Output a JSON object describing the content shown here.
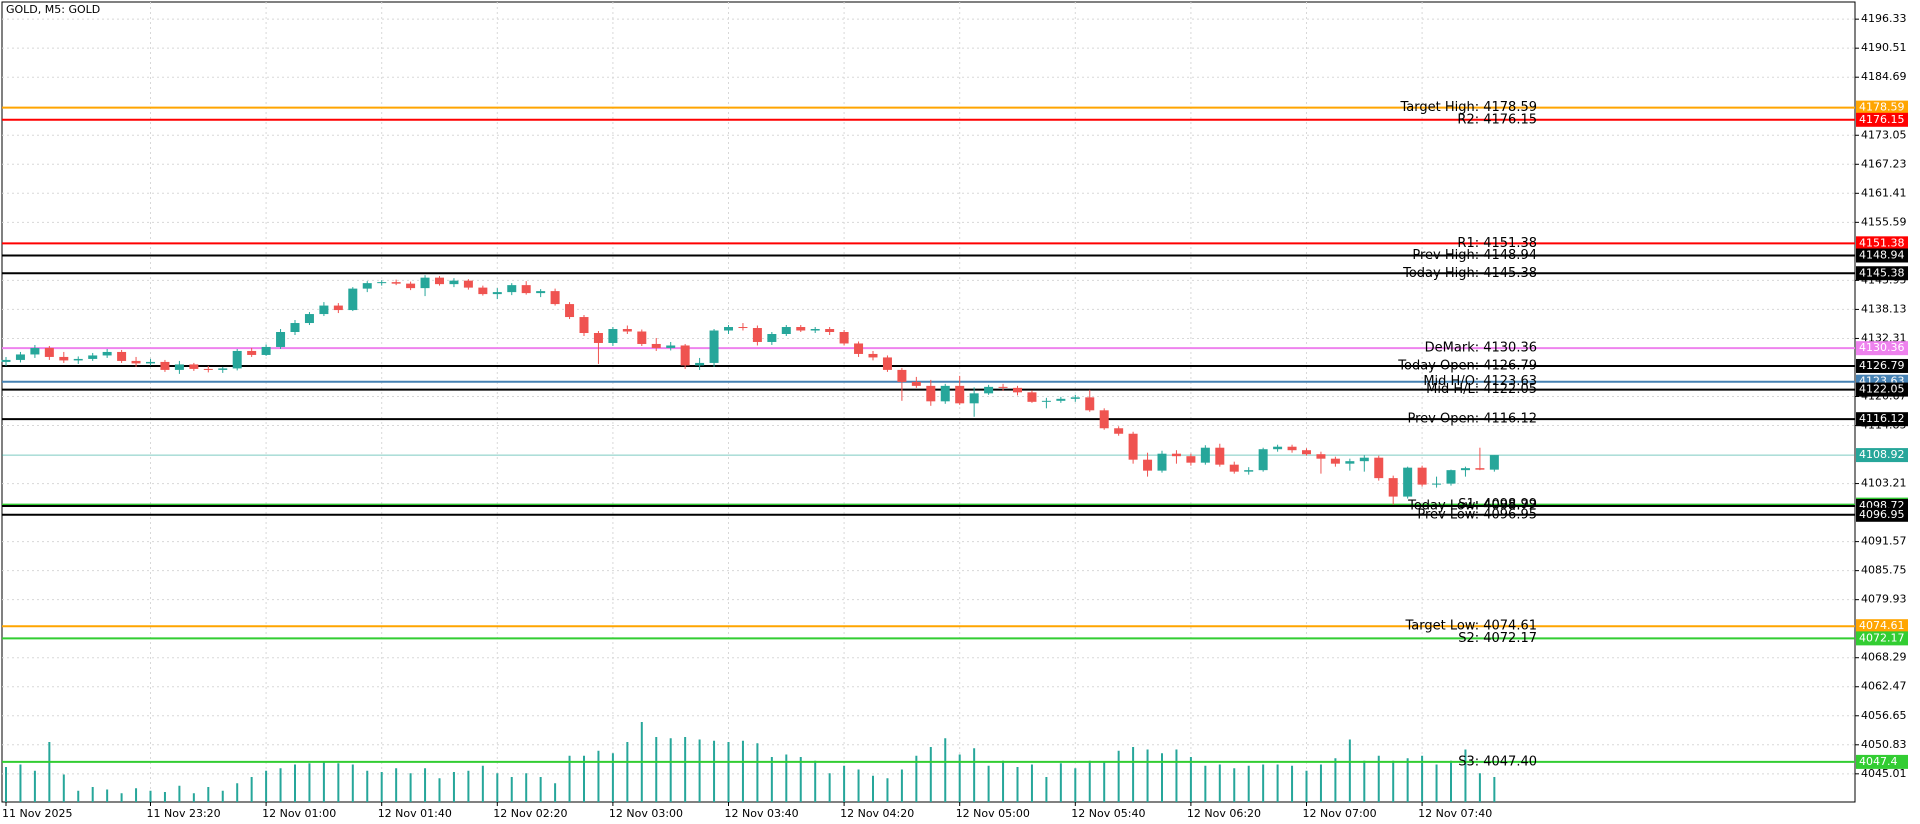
{
  "chart_data": {
    "type": "candlestick",
    "title": "GOLD, M5:  GOLD",
    "bull_color": "#26a69a",
    "bear_color": "#ef5350",
    "volume_color": "#26a69a",
    "grid": true,
    "ylim": [
      4039.36,
      4199.77
    ],
    "yticks": [
      4196.33,
      4190.51,
      4184.69,
      4173.05,
      4167.23,
      4161.41,
      4155.59,
      4143.95,
      4138.13,
      4132.31,
      4120.67,
      4114.85,
      4103.21,
      4091.57,
      4085.75,
      4079.93,
      4068.29,
      4062.47,
      4056.65,
      4050.83,
      4045.01
    ],
    "categories": [
      "11 Nov 2025",
      null,
      null,
      null,
      null,
      null,
      null,
      null,
      null,
      null,
      "11 Nov 23:20",
      null,
      null,
      null,
      null,
      null,
      null,
      null,
      "12 Nov 01:00",
      null,
      null,
      null,
      null,
      null,
      null,
      null,
      "12 Nov 01:40",
      null,
      null,
      null,
      null,
      null,
      null,
      null,
      "12 Nov 02:20",
      null,
      null,
      null,
      null,
      null,
      null,
      null,
      "12 Nov 03:00",
      null,
      null,
      null,
      null,
      null,
      null,
      null,
      "12 Nov 03:40",
      null,
      null,
      null,
      null,
      null,
      null,
      null,
      "12 Nov 04:20",
      null,
      null,
      null,
      null,
      null,
      null,
      null,
      "12 Nov 05:00",
      null,
      null,
      null,
      null,
      null,
      null,
      null,
      "12 Nov 05:40",
      null,
      null,
      null,
      null,
      null,
      null,
      null,
      "12 Nov 06:20",
      null,
      null,
      null,
      null,
      null,
      null,
      null,
      "12 Nov 07:00",
      null,
      null,
      null,
      null,
      null,
      null,
      null,
      "12 Nov 07:40",
      null,
      null,
      null,
      null,
      null
    ],
    "ohlc": [
      [
        4127.6,
        4128.6,
        4126.8,
        4128.0
      ],
      [
        4128.0,
        4129.6,
        4127.5,
        4129.1
      ],
      [
        4129.1,
        4131.0,
        4128.4,
        4130.4
      ],
      [
        4130.4,
        4130.8,
        4128.0,
        4128.6
      ],
      [
        4128.6,
        4129.6,
        4127.4,
        4127.9
      ],
      [
        4127.9,
        4128.7,
        4127.2,
        4128.2
      ],
      [
        4128.2,
        4129.4,
        4127.8,
        4128.9
      ],
      [
        4128.9,
        4130.2,
        4128.4,
        4129.6
      ],
      [
        4129.6,
        4130.0,
        4127.4,
        4127.8
      ],
      [
        4127.8,
        4128.6,
        4126.6,
        4127.3
      ],
      [
        4127.3,
        4128.2,
        4126.9,
        4127.6
      ],
      [
        4127.6,
        4128.0,
        4125.6,
        4126.0
      ],
      [
        4126.0,
        4127.8,
        4125.2,
        4127.1
      ],
      [
        4127.1,
        4127.4,
        4125.8,
        4126.2
      ],
      [
        4126.2,
        4126.8,
        4125.5,
        4126.0
      ],
      [
        4126.0,
        4126.6,
        4125.4,
        4126.3
      ],
      [
        4126.3,
        4130.2,
        4125.9,
        4129.8
      ],
      [
        4129.8,
        4130.4,
        4128.6,
        4129.0
      ],
      [
        4129.0,
        4131.1,
        4128.8,
        4130.6
      ],
      [
        4130.6,
        4134.2,
        4130.2,
        4133.6
      ],
      [
        4133.6,
        4136.0,
        4133.0,
        4135.4
      ],
      [
        4135.4,
        4137.6,
        4135.0,
        4137.2
      ],
      [
        4137.2,
        4139.6,
        4136.8,
        4138.9
      ],
      [
        4138.9,
        4139.4,
        4137.4,
        4138.0
      ],
      [
        4138.0,
        4142.6,
        4137.8,
        4142.3
      ],
      [
        4142.3,
        4143.8,
        4141.6,
        4143.4
      ],
      [
        4143.4,
        4144.0,
        4142.9,
        4143.6
      ],
      [
        4143.6,
        4144.1,
        4143.0,
        4143.3
      ],
      [
        4143.3,
        4143.7,
        4142.0,
        4142.4
      ],
      [
        4142.4,
        4145.0,
        4140.8,
        4144.5
      ],
      [
        4144.5,
        4144.8,
        4142.9,
        4143.2
      ],
      [
        4143.2,
        4144.4,
        4142.6,
        4143.9
      ],
      [
        4143.9,
        4144.2,
        4142.1,
        4142.5
      ],
      [
        4142.5,
        4142.9,
        4140.9,
        4141.2
      ],
      [
        4141.2,
        4142.4,
        4140.2,
        4141.6
      ],
      [
        4141.6,
        4143.4,
        4141.0,
        4143.0
      ],
      [
        4143.0,
        4143.8,
        4141.1,
        4141.4
      ],
      [
        4141.4,
        4142.2,
        4140.6,
        4141.8
      ],
      [
        4141.8,
        4142.3,
        4138.9,
        4139.2
      ],
      [
        4139.2,
        4139.6,
        4136.2,
        4136.6
      ],
      [
        4136.6,
        4137.0,
        4132.8,
        4133.4
      ],
      [
        4133.4,
        4133.8,
        4127.2,
        4131.4
      ],
      [
        4131.4,
        4134.6,
        4130.8,
        4134.2
      ],
      [
        4134.2,
        4134.9,
        4133.2,
        4133.7
      ],
      [
        4133.7,
        4134.1,
        4130.8,
        4131.2
      ],
      [
        4131.2,
        4132.4,
        4129.8,
        4130.4
      ],
      [
        4130.4,
        4131.6,
        4129.9,
        4130.9
      ],
      [
        4130.9,
        4131.2,
        4126.2,
        4126.9
      ],
      [
        4126.9,
        4128.4,
        4126.0,
        4127.4
      ],
      [
        4127.4,
        4134.2,
        4126.6,
        4133.9
      ],
      [
        4133.9,
        4135.0,
        4133.2,
        4134.6
      ],
      [
        4134.6,
        4135.4,
        4133.9,
        4134.4
      ],
      [
        4134.4,
        4134.9,
        4130.9,
        4131.6
      ],
      [
        4131.6,
        4133.6,
        4131.0,
        4133.2
      ],
      [
        4133.2,
        4135.0,
        4132.8,
        4134.6
      ],
      [
        4134.6,
        4135.0,
        4133.6,
        4133.9
      ],
      [
        4133.9,
        4134.6,
        4133.4,
        4134.2
      ],
      [
        4134.2,
        4134.6,
        4133.0,
        4133.6
      ],
      [
        4133.6,
        4134.0,
        4130.9,
        4131.3
      ],
      [
        4131.3,
        4131.7,
        4128.6,
        4129.2
      ],
      [
        4129.2,
        4129.8,
        4127.9,
        4128.5
      ],
      [
        4128.5,
        4128.9,
        4125.6,
        4126.0
      ],
      [
        4126.0,
        4126.4,
        4119.8,
        4123.6
      ],
      [
        4123.6,
        4124.6,
        4122.4,
        4122.8
      ],
      [
        4122.8,
        4124.0,
        4118.8,
        4119.7
      ],
      [
        4119.7,
        4123.2,
        4119.2,
        4122.8
      ],
      [
        4122.8,
        4124.8,
        4119.0,
        4119.3
      ],
      [
        4119.3,
        4122.5,
        4116.6,
        4121.3
      ],
      [
        4121.3,
        4123.0,
        4121.0,
        4122.6
      ],
      [
        4122.6,
        4123.2,
        4121.8,
        4122.4
      ],
      [
        4122.4,
        4122.8,
        4120.9,
        4121.5
      ],
      [
        4121.5,
        4121.9,
        4119.4,
        4119.6
      ],
      [
        4119.6,
        4120.4,
        4118.3,
        4119.8
      ],
      [
        4119.8,
        4120.6,
        4119.4,
        4120.2
      ],
      [
        4120.2,
        4121.0,
        4119.6,
        4120.5
      ],
      [
        4120.5,
        4122.0,
        4117.6,
        4117.9
      ],
      [
        4117.9,
        4118.3,
        4114.0,
        4114.3
      ],
      [
        4114.3,
        4114.7,
        4112.8,
        4113.2
      ],
      [
        4113.2,
        4113.6,
        4107.2,
        4108.0
      ],
      [
        4108.0,
        4109.4,
        4104.6,
        4105.8
      ],
      [
        4105.8,
        4109.8,
        4105.4,
        4109.2
      ],
      [
        4109.2,
        4109.9,
        4107.2,
        4108.7
      ],
      [
        4108.7,
        4109.2,
        4106.8,
        4107.4
      ],
      [
        4107.4,
        4110.9,
        4107.0,
        4110.4
      ],
      [
        4110.4,
        4111.2,
        4106.6,
        4107.0
      ],
      [
        4107.0,
        4107.6,
        4105.2,
        4105.6
      ],
      [
        4105.6,
        4106.5,
        4105.0,
        4105.9
      ],
      [
        4105.9,
        4110.4,
        4105.6,
        4110.1
      ],
      [
        4110.1,
        4111.0,
        4109.6,
        4110.6
      ],
      [
        4110.6,
        4111.0,
        4109.4,
        4109.9
      ],
      [
        4109.9,
        4110.3,
        4108.8,
        4109.1
      ],
      [
        4109.1,
        4109.6,
        4105.2,
        4108.2
      ],
      [
        4108.2,
        4108.6,
        4106.6,
        4107.2
      ],
      [
        4107.2,
        4108.2,
        4105.8,
        4107.7
      ],
      [
        4107.7,
        4108.9,
        4105.6,
        4108.4
      ],
      [
        4108.4,
        4108.8,
        4103.8,
        4104.3
      ],
      [
        4104.3,
        4104.8,
        4099.0,
        4100.6
      ],
      [
        4100.6,
        4106.6,
        4100.2,
        4106.4
      ],
      [
        4106.4,
        4106.8,
        4102.6,
        4103.0
      ],
      [
        4103.0,
        4104.6,
        4102.4,
        4103.2
      ],
      [
        4103.2,
        4106.0,
        4102.8,
        4105.9
      ],
      [
        4105.9,
        4106.6,
        4104.6,
        4106.3
      ],
      [
        4106.3,
        4110.4,
        4105.9,
        4106.0
      ],
      [
        4106.0,
        4108.9,
        4105.6,
        4108.92
      ]
    ],
    "volumes": [
      280,
      300,
      250,
      480,
      220,
      90,
      120,
      100,
      70,
      110,
      90,
      80,
      130,
      70,
      120,
      90,
      150,
      200,
      250,
      270,
      300,
      310,
      320,
      310,
      300,
      250,
      240,
      270,
      230,
      270,
      190,
      240,
      250,
      290,
      230,
      200,
      230,
      200,
      150,
      370,
      370,
      410,
      390,
      480,
      640,
      520,
      510,
      520,
      500,
      490,
      480,
      490,
      470,
      360,
      380,
      360,
      330,
      230,
      290,
      260,
      210,
      190,
      260,
      370,
      440,
      510,
      380,
      430,
      290,
      330,
      280,
      300,
      200,
      310,
      270,
      330,
      320,
      410,
      440,
      420,
      390,
      420,
      360,
      290,
      300,
      270,
      290,
      300,
      300,
      290,
      250,
      300,
      350,
      500,
      330,
      370,
      330,
      350,
      370,
      300,
      330,
      420,
      230,
      200
    ],
    "levels": [
      {
        "label": "Target High: 4178.59",
        "value": 4178.59,
        "color": "#ffa500"
      },
      {
        "label": "R2: 4176.15",
        "value": 4176.15,
        "color": "#ff0000"
      },
      {
        "label": "R1: 4151.38",
        "value": 4151.38,
        "color": "#ff0000"
      },
      {
        "label": "Prev High: 4148.94",
        "value": 4148.94,
        "color": "#000000"
      },
      {
        "label": "Today High: 4145.38",
        "value": 4145.38,
        "color": "#000000"
      },
      {
        "label": "DeMark: 4130.36",
        "value": 4130.36,
        "color": "#ee82ee"
      },
      {
        "label": "Today Open: 4126.79",
        "value": 4126.79,
        "color": "#000000"
      },
      {
        "label": "Mid H/O: 4123.63",
        "value": 4123.63,
        "color": "#4682b4"
      },
      {
        "label": "Mid H/L: 4122.05",
        "value": 4122.05,
        "color": "#000000"
      },
      {
        "label": "Prev Open: 4116.12",
        "value": 4116.12,
        "color": "#000000"
      },
      {
        "label": "S1: 4098.99",
        "value": 4098.99,
        "color": "#32cd32"
      },
      {
        "label": "Today Low: 4098.72",
        "value": 4098.72,
        "color": "#000000"
      },
      {
        "label": "Prev Low: 4096.95",
        "value": 4096.95,
        "color": "#000000"
      },
      {
        "label": "Target Low: 4074.61",
        "value": 4074.61,
        "color": "#ffa500"
      },
      {
        "label": "S2: 4072.17",
        "value": 4072.17,
        "color": "#32cd32"
      },
      {
        "label": "S3: 4047.40",
        "value": 4047.4,
        "color": "#32cd32"
      }
    ],
    "bid": {
      "value": 4108.92,
      "color": "#26a69a"
    }
  }
}
